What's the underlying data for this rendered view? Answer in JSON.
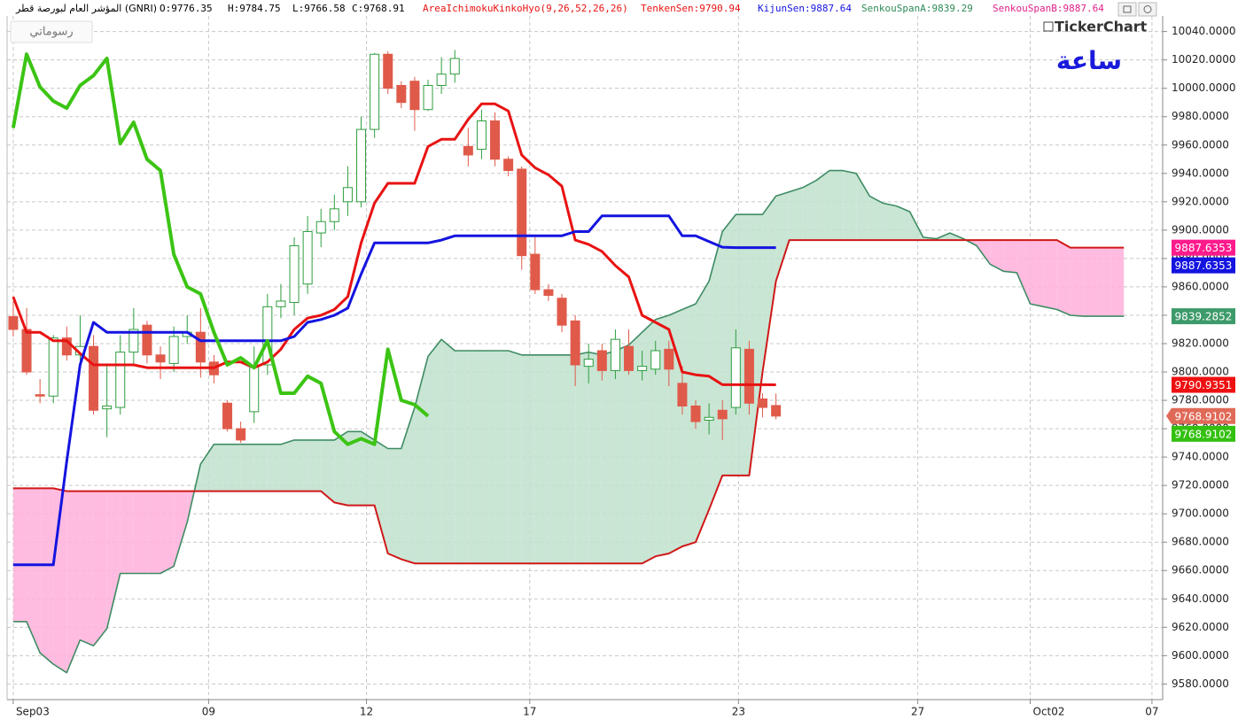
{
  "chart_data": {
    "type": "candlestick",
    "title": "المؤشر العام لبورصة قطر (GNRI)",
    "ohlc": [
      "O:9776.35",
      "H:9784.75",
      "L:9766.58",
      "C:9768.91"
    ],
    "indicator": "AreaIchimokuKinkoHyo(9,26,52,26,26)",
    "ui": {
      "drawings_button": "رسوماتي",
      "logo": "TickerChart",
      "period": "ساعة"
    },
    "x": [
      0,
      1,
      2,
      3,
      4,
      5,
      6,
      7,
      8,
      9,
      10,
      11,
      12,
      13,
      14,
      15,
      16,
      17,
      18,
      19,
      20,
      21,
      22,
      23,
      24,
      25,
      26,
      27,
      28,
      29,
      30,
      31,
      32,
      33,
      34,
      35,
      36,
      37,
      38,
      39,
      40,
      41,
      42,
      43,
      44,
      45,
      46,
      47,
      48,
      49,
      50,
      51,
      52,
      53,
      54,
      55,
      56,
      57,
      58,
      59,
      60,
      61,
      62,
      63,
      64,
      65,
      66,
      67,
      68,
      69,
      70,
      71,
      72,
      73,
      74,
      75,
      76,
      77,
      78,
      79,
      80,
      81,
      82,
      83
    ],
    "xlim": [
      -0.46,
      85.9
    ],
    "xticks": [
      {
        "value": 0,
        "label": "Sep03"
      },
      {
        "value": 14.6,
        "label": "09"
      },
      {
        "value": 26.4,
        "label": "12"
      },
      {
        "value": 38.6,
        "label": "17"
      },
      {
        "value": 54.2,
        "label": "23"
      },
      {
        "value": 67.6,
        "label": "27"
      },
      {
        "value": 76,
        "label": "Oct02"
      },
      {
        "value": 85.1,
        "label": "07"
      }
    ],
    "ylim": [
      9569,
      10051
    ],
    "yticks": [
      {
        "value": 10040,
        "label": "10040.0000"
      },
      {
        "value": 10020,
        "label": "10020.0000"
      },
      {
        "value": 10000,
        "label": "10000.0000"
      },
      {
        "value": 9980,
        "label": "9980.0000"
      },
      {
        "value": 9960,
        "label": "9960.0000"
      },
      {
        "value": 9940,
        "label": "9940.0000"
      },
      {
        "value": 9920,
        "label": "9920.0000"
      },
      {
        "value": 9900,
        "label": "9900.0000"
      },
      {
        "value": 9880,
        "label": "9880.0000"
      },
      {
        "value": 9860,
        "label": "9860.0000"
      },
      {
        "value": 9840,
        "label": "9840.0000"
      },
      {
        "value": 9820,
        "label": "9820.0000"
      },
      {
        "value": 9800,
        "label": "9800.0000"
      },
      {
        "value": 9780,
        "label": "9780.0000"
      },
      {
        "value": 9760,
        "label": "9760.0000"
      },
      {
        "value": 9740,
        "label": "9740.0000"
      },
      {
        "value": 9720,
        "label": "9720.0000"
      },
      {
        "value": 9700,
        "label": "9700.0000"
      },
      {
        "value": 9680,
        "label": "9680.0000"
      },
      {
        "value": 9660,
        "label": "9660.0000"
      },
      {
        "value": 9640,
        "label": "9640.0000"
      },
      {
        "value": 9620,
        "label": "9620.0000"
      },
      {
        "value": 9600,
        "label": "9600.0000"
      },
      {
        "value": 9580,
        "label": "9580.0000"
      }
    ],
    "grid": true,
    "candles": {
      "up_color": "#2f9e3f",
      "down_color": "#e05a4a",
      "open": [
        9839,
        9830,
        9784,
        9783,
        9824,
        9812,
        9818,
        9774,
        9775,
        9814,
        9833,
        9812,
        9806,
        9825,
        9828,
        9807,
        9778,
        9760,
        9772,
        9805,
        9846,
        9849,
        9862,
        9898,
        9906,
        9920,
        9920,
        9971,
        10024,
        10002,
        10005,
        9985,
        10002,
        10010,
        9959,
        9957,
        9977,
        9950,
        9943,
        9883,
        9858,
        9852,
        9836,
        9804,
        9815,
        9801,
        9818,
        9801,
        9802,
        9816,
        9792,
        9776,
        9766,
        9773,
        9775,
        9816,
        9781,
        9776.35,
        null,
        null,
        null,
        null,
        null,
        null,
        null,
        null,
        null,
        null,
        null,
        null,
        null,
        null,
        null,
        null,
        null,
        null,
        null,
        null,
        null,
        null,
        null,
        null,
        null,
        null
      ],
      "high": [
        9850,
        9845,
        9795,
        9826,
        9832,
        9840,
        9826,
        9806,
        9826,
        9845,
        9836,
        9818,
        9832,
        9840,
        9845,
        9812,
        9780,
        9765,
        9818,
        9855,
        9862,
        9895,
        9910,
        9915,
        9925,
        9945,
        9980,
        10025,
        10026,
        10005,
        10008,
        10006,
        10022,
        10027,
        9972,
        9985,
        9983,
        9952,
        9945,
        9895,
        9862,
        9855,
        9840,
        9820,
        9820,
        9830,
        9830,
        9815,
        9822,
        9822,
        9804,
        9780,
        9778,
        9780,
        9830,
        9822,
        9785,
        9784.75,
        null,
        null,
        null,
        null,
        null,
        null,
        null,
        null,
        null,
        null,
        null,
        null,
        null,
        null,
        null,
        null,
        null,
        null,
        null,
        null,
        null,
        null,
        null,
        null,
        null,
        null
      ],
      "low": [
        9825,
        9798,
        9778,
        9778,
        9808,
        9805,
        9770,
        9754,
        9770,
        9805,
        9806,
        9795,
        9800,
        9820,
        9796,
        9792,
        9758,
        9750,
        9764,
        9798,
        9838,
        9840,
        9855,
        9888,
        9900,
        9910,
        9916,
        9965,
        9996,
        9986,
        9970,
        9984,
        9996,
        10004,
        9945,
        9950,
        9945,
        9938,
        9872,
        9855,
        9850,
        9828,
        9790,
        9792,
        9794,
        9795,
        9798,
        9794,
        9798,
        9790,
        9770,
        9760,
        9756,
        9752,
        9770,
        9770,
        9768,
        9766.58,
        null,
        null,
        null,
        null,
        null,
        null,
        null,
        null,
        null,
        null,
        null,
        null,
        null,
        null,
        null,
        null,
        null,
        null,
        null,
        null,
        null,
        null,
        null,
        null,
        null,
        null
      ],
      "close": [
        9830,
        9800,
        9783,
        9824,
        9812,
        9818,
        9773,
        9776,
        9814,
        9830,
        9812,
        9807,
        9825,
        9828,
        9807,
        9798,
        9760,
        9752,
        9804,
        9846,
        9850,
        9889,
        9899,
        9906,
        9915,
        9930,
        9971,
        10024,
        10000,
        9990,
        9985,
        10002,
        10010,
        10021,
        9953,
        9977,
        9950,
        9942,
        9882,
        9858,
        9854,
        9833,
        9805,
        9809,
        9801,
        9823,
        9801,
        9804,
        9815,
        9802,
        9776,
        9765,
        9768,
        9767,
        9817,
        9778,
        9775,
        9768.91,
        null,
        null,
        null,
        null,
        null,
        null,
        null,
        null,
        null,
        null,
        null,
        null,
        null,
        null,
        null,
        null,
        null,
        null,
        null,
        null,
        null,
        null,
        null,
        null,
        null,
        null
      ]
    },
    "cloud_colors": {
      "up": "#bfe0cc",
      "down": "#ffb0da"
    },
    "series": [
      {
        "name": "TenkenSen:9790.94",
        "color": "#e81212",
        "values": [
          9853,
          9828,
          9828,
          9822,
          9822,
          9813,
          9805,
          9805,
          9805,
          9805,
          9803,
          9803,
          9803,
          9803,
          9803,
          9803,
          9807,
          9807,
          9803,
          9807,
          9816,
          9830,
          9838,
          9840,
          9844,
          9853,
          9891,
          9919,
          9933,
          9933,
          9933,
          9959,
          9964,
          9964,
          9978,
          9989,
          9989,
          9984,
          9953,
          9944,
          9939,
          9931,
          9893,
          9890,
          9885,
          9875,
          9867,
          9840,
          9835,
          9830,
          9800,
          9798,
          9797,
          9791,
          9791,
          9791,
          9791,
          9790.94,
          null,
          null,
          null,
          null,
          null,
          null,
          null,
          null,
          null,
          null,
          null,
          null,
          null,
          null,
          null,
          null,
          null,
          null,
          null,
          null,
          null,
          null,
          null,
          null,
          null,
          null
        ]
      },
      {
        "name": "KijunSen:9887.64",
        "color": "#1414e0",
        "values": [
          9664,
          9664,
          9664,
          9664,
          9737,
          9805,
          9835,
          9828,
          9828,
          9828,
          9828,
          9828,
          9828,
          9828,
          9822,
          9822,
          9822,
          9822,
          9822,
          9822,
          9822,
          9825,
          9835,
          9837,
          9840,
          9845,
          9869,
          9891,
          9891,
          9891,
          9891,
          9891,
          9893,
          9896,
          9896,
          9896,
          9896,
          9896,
          9896,
          9896,
          9896,
          9896,
          9899,
          9899,
          9910,
          9910,
          9910,
          9910,
          9910,
          9910,
          9896,
          9896,
          9892,
          9888,
          9887.64,
          9887.64,
          9887.64,
          9887.64,
          null,
          null,
          null,
          null,
          null,
          null,
          null,
          null,
          null,
          null,
          null,
          null,
          null,
          null,
          null,
          null,
          null,
          null,
          null,
          null,
          null,
          null,
          null,
          null,
          null,
          null
        ]
      },
      {
        "name": "SenkouSpanA:9839.29",
        "color": "#3d8c63",
        "values": [
          9624,
          9624,
          9602,
          9594,
          9588,
          9611,
          9607,
          9619,
          9658,
          9658,
          9658,
          9658,
          9663,
          9694,
          9735,
          9749,
          9749,
          9749,
          9749,
          9749,
          9749,
          9752,
          9752,
          9752,
          9752,
          9758,
          9758,
          9752,
          9746,
          9746,
          9775,
          9811,
          9823,
          9815,
          9815,
          9815,
          9815,
          9815,
          9812,
          9812,
          9812,
          9812,
          9812,
          9814,
          9812,
          9815,
          9819,
          9828,
          9837,
          9840,
          9844,
          9848,
          9864,
          9899,
          9911,
          9911,
          9911,
          9924,
          9927,
          9930,
          9935,
          9942,
          9942,
          9940,
          9924,
          9919,
          9917,
          9913,
          9895,
          9894,
          9898,
          9894,
          9889,
          9876,
          9871,
          9870,
          9848,
          9846,
          9844,
          9840,
          9839.29,
          9839.29,
          9839.29,
          9839.29
        ]
      },
      {
        "name": "SenkouSpanB:9887.64",
        "color": "#d01818",
        "values": [
          9718,
          9718,
          9718,
          9718,
          9716,
          9716,
          9716,
          9716,
          9716,
          9716,
          9716,
          9716,
          9716,
          9716,
          9716,
          9716,
          9716,
          9716,
          9716,
          9716,
          9716,
          9716,
          9716,
          9716,
          9708,
          9706,
          9706,
          9706,
          9672,
          9668,
          9665,
          9665,
          9665,
          9665,
          9665,
          9665,
          9665,
          9665,
          9665,
          9665,
          9665,
          9665,
          9665,
          9665,
          9665,
          9665,
          9665,
          9665,
          9670,
          9672,
          9677,
          9680,
          9703,
          9727,
          9727,
          9727,
          9800,
          9864,
          9893,
          9893,
          9893,
          9893,
          9893,
          9893,
          9893,
          9893,
          9893,
          9893,
          9893,
          9893,
          9893,
          9893,
          9893,
          9893,
          9893,
          9893,
          9893,
          9893,
          9893,
          9887.64,
          9887.64,
          9887.64,
          9887.64,
          9887.64
        ]
      },
      {
        "color": "#3cc414",
        "values": [
          9972,
          10024,
          10001,
          9991,
          9986,
          10002,
          10009,
          10021,
          9961,
          9976,
          9950,
          9942,
          9883,
          9860,
          9855,
          9828,
          9805,
          9810,
          9803,
          9822,
          9785,
          9785,
          9797,
          9792,
          9758,
          9749,
          9753,
          9749,
          9816,
          9780,
          9777,
          9768.91,
          null,
          null,
          null,
          null,
          null,
          null,
          null,
          null,
          null,
          null,
          null,
          null,
          null,
          null,
          null,
          null,
          null,
          null,
          null,
          null,
          null,
          null,
          null,
          null,
          null,
          null,
          null,
          null,
          null,
          null,
          null,
          null,
          null,
          null,
          null,
          null,
          null,
          null,
          null,
          null,
          null,
          null,
          null,
          null,
          null,
          null,
          null,
          null,
          null,
          null,
          null,
          null
        ]
      }
    ],
    "price_tags": [
      {
        "value": 9887.6353,
        "color": "#ff1a8c"
      },
      {
        "value": 9887.6353,
        "color": "#1414e0"
      },
      {
        "value": 9839.2852,
        "color": "#3d9a6a"
      },
      {
        "value": 9790.9351,
        "color": "#ee1111"
      },
      {
        "value": 9768.9102,
        "color": "#e06a58"
      },
      {
        "value": 9768.9102,
        "color": "#33c010"
      }
    ]
  }
}
